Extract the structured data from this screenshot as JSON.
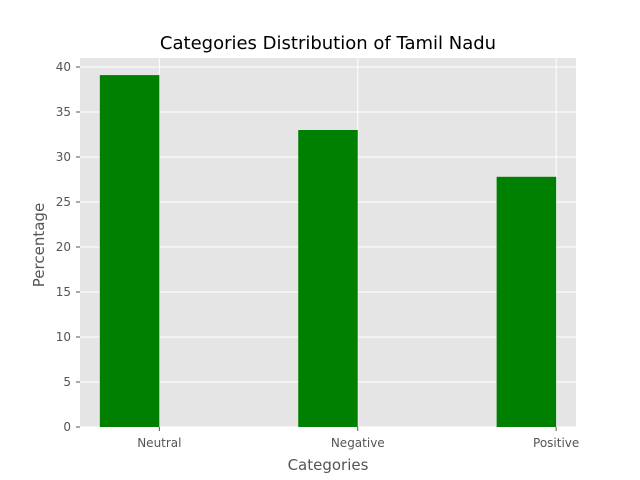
{
  "chart_data": {
    "type": "bar",
    "title": "Categories Distribution of Tamil Nadu",
    "xlabel": "Categories",
    "ylabel": "Percentage",
    "categories": [
      "Neutral",
      "Negative",
      "Positive"
    ],
    "values": [
      39.1,
      33.0,
      27.8
    ],
    "ylim": [
      0,
      41.0
    ],
    "yticks": [
      0,
      5,
      10,
      15,
      20,
      25,
      30,
      35,
      40
    ],
    "grid": true,
    "bar_color": "#008000",
    "background_color": "#e5e5e5"
  }
}
